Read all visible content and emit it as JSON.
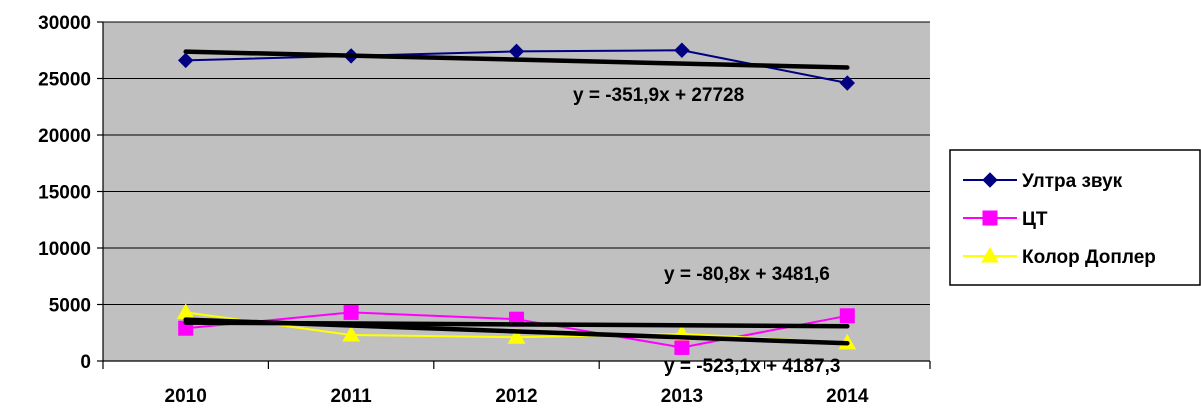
{
  "chart_data": {
    "type": "line",
    "categories": [
      "2010",
      "2011",
      "2012",
      "2013",
      "2014"
    ],
    "ylim": [
      0,
      30000
    ],
    "yticks": [
      0,
      5000,
      10000,
      15000,
      20000,
      25000,
      30000
    ],
    "grid": true,
    "plot_background": "#c0c0c0",
    "legend_position": "right",
    "series": [
      {
        "name": "Ултра звук",
        "color": "#000080",
        "marker": "diamond",
        "values": [
          26600,
          27000,
          27400,
          27500,
          24600
        ]
      },
      {
        "name": "ЦТ",
        "color": "#ff00ff",
        "marker": "square",
        "values": [
          2900,
          4300,
          3700,
          1200,
          4000
        ]
      },
      {
        "name": "Колор Доплер",
        "color": "#ffff00",
        "marker": "triangle",
        "values": [
          4300,
          2300,
          2100,
          2400,
          1600
        ]
      }
    ],
    "trendlines": [
      {
        "equation": "y = -351,9x + 27728",
        "slope": -351.9,
        "intercept": 27728,
        "color": "#000000"
      },
      {
        "equation": "y = -80,8x + 3481,6",
        "slope": -80.8,
        "intercept": 3481.6,
        "color": "#000000"
      },
      {
        "equation": "y = -523,1x + 4187,3",
        "slope": -523.1,
        "intercept": 4187.3,
        "color": "#000000"
      }
    ]
  }
}
